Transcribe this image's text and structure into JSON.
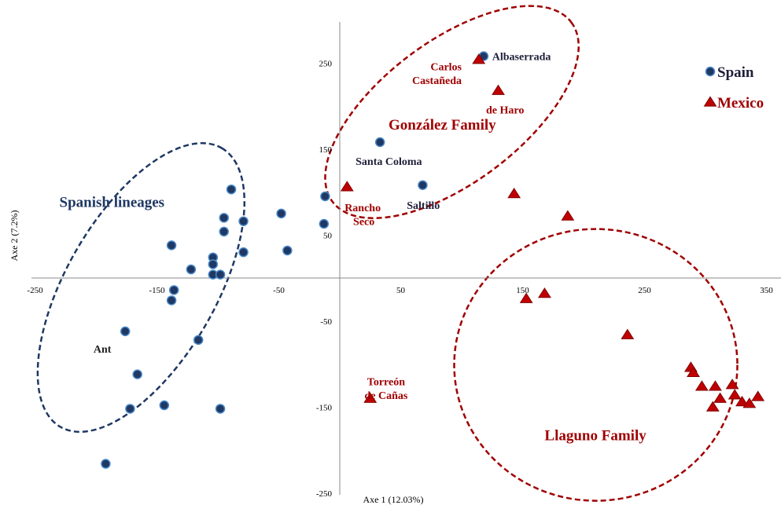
{
  "chart_data": {
    "type": "scatter",
    "xlabel": "Axe 1 (12.03%)",
    "ylabel": "Axe 2  (7.2%)",
    "xlim": [
      -250,
      360
    ],
    "ylim": [
      -250,
      300
    ],
    "x_ticks": [
      "-250",
      "-150",
      "-50",
      "50",
      "150",
      "250",
      "350"
    ],
    "y_ticks": [
      "250",
      "150",
      "50",
      "-50",
      "-150",
      "-250"
    ],
    "legend_position": "top-right",
    "series": [
      {
        "name": "Spain",
        "marker": "circle",
        "color": "#1f3864",
        "edge": "#4a89c8",
        "points": [
          {
            "x": 118,
            "y": 258
          },
          {
            "x": 33,
            "y": 158
          },
          {
            "x": 68,
            "y": 108
          },
          {
            "x": -89,
            "y": 103
          },
          {
            "x": -12,
            "y": 95
          },
          {
            "x": -48,
            "y": 75
          },
          {
            "x": -95,
            "y": 70
          },
          {
            "x": -79,
            "y": 66
          },
          {
            "x": -13,
            "y": 63
          },
          {
            "x": -95,
            "y": 54
          },
          {
            "x": -138,
            "y": 38
          },
          {
            "x": -43,
            "y": 32
          },
          {
            "x": -79,
            "y": 30
          },
          {
            "x": -104,
            "y": 24
          },
          {
            "x": -104,
            "y": 16
          },
          {
            "x": -122,
            "y": 10
          },
          {
            "x": -104,
            "y": 4
          },
          {
            "x": -98,
            "y": 4
          },
          {
            "x": -136,
            "y": -14
          },
          {
            "x": -138,
            "y": -26
          },
          {
            "x": -176,
            "y": -62
          },
          {
            "x": -116,
            "y": -72
          },
          {
            "x": -166,
            "y": -112
          },
          {
            "x": -144,
            "y": -148
          },
          {
            "x": -172,
            "y": -152
          },
          {
            "x": -98,
            "y": -152
          },
          {
            "x": -192,
            "y": -216
          }
        ]
      },
      {
        "name": "Mexico",
        "marker": "triangle",
        "color": "#c00000",
        "edge": "#7f0000",
        "points": [
          {
            "x": 114,
            "y": 254
          },
          {
            "x": 130,
            "y": 218
          },
          {
            "x": 6,
            "y": 106
          },
          {
            "x": 143,
            "y": 98
          },
          {
            "x": 187,
            "y": 72
          },
          {
            "x": 168,
            "y": -18
          },
          {
            "x": 153,
            "y": -24
          },
          {
            "x": 236,
            "y": -66
          },
          {
            "x": 288,
            "y": -104
          },
          {
            "x": 290,
            "y": -110
          },
          {
            "x": 297,
            "y": -126
          },
          {
            "x": 308,
            "y": -126
          },
          {
            "x": 322,
            "y": -124
          },
          {
            "x": 312,
            "y": -140
          },
          {
            "x": 324,
            "y": -136
          },
          {
            "x": 330,
            "y": -144
          },
          {
            "x": 336,
            "y": -146
          },
          {
            "x": 343,
            "y": -138
          },
          {
            "x": 306,
            "y": -150
          },
          {
            "x": 25,
            "y": -140
          }
        ]
      }
    ],
    "point_labels": [
      {
        "text": "Albaserrada",
        "x": 125,
        "y": 258,
        "color": "#1f1f3a"
      },
      {
        "text": "Carlos",
        "x": 100,
        "y": 246,
        "color": "#a00000",
        "align": "end"
      },
      {
        "text": "Castañeda",
        "x": 100,
        "y": 230,
        "color": "#a00000",
        "align": "end"
      },
      {
        "text": "de Haro",
        "x": 120,
        "y": 196,
        "color": "#a00000"
      },
      {
        "text": "Santa Coloma",
        "x": 13,
        "y": 136,
        "color": "#1f1f3a"
      },
      {
        "text": "Saltillo",
        "x": 55,
        "y": 85,
        "color": "#1f1f3a"
      },
      {
        "text": "Rancho",
        "x": 4,
        "y": 82,
        "color": "#a00000"
      },
      {
        "text": "Seco",
        "x": 11,
        "y": 66,
        "color": "#a00000"
      },
      {
        "text": "Ant",
        "x": -202,
        "y": -82,
        "color": "#222222"
      },
      {
        "text": "Torreón",
        "x": 38,
        "y": -120,
        "color": "#a00000",
        "align": "middle"
      },
      {
        "text": "de Cañas",
        "x": 38,
        "y": -136,
        "color": "#a00000",
        "align": "middle"
      }
    ],
    "group_labels": [
      {
        "text": "Spanish lineages",
        "x": -230,
        "y": 88,
        "color": "#1f3864"
      },
      {
        "text": "González Family",
        "x": 40,
        "y": 178,
        "color": "#a00000"
      },
      {
        "text": "Llaguno Family",
        "x": 168,
        "y": -183,
        "color": "#a00000"
      }
    ],
    "ellipses": [
      {
        "group": "Spanish lineages",
        "cx": -163,
        "cy": -11,
        "rx": 205,
        "ry": 95,
        "rotation": -60,
        "color": "#1f3864"
      },
      {
        "group": "González Family",
        "cx": 92,
        "cy": 193,
        "rx": 190,
        "ry": 90,
        "rotation": -37,
        "color": "#a00000"
      },
      {
        "group": "Llaguno Family",
        "cx": 210,
        "cy": -101,
        "rx": 180,
        "ry": 173,
        "rotation": 0,
        "color": "#a00000"
      }
    ],
    "legend": [
      {
        "text": "Spain",
        "marker": "circle"
      },
      {
        "text": "Mexico",
        "marker": "triangle"
      }
    ]
  }
}
